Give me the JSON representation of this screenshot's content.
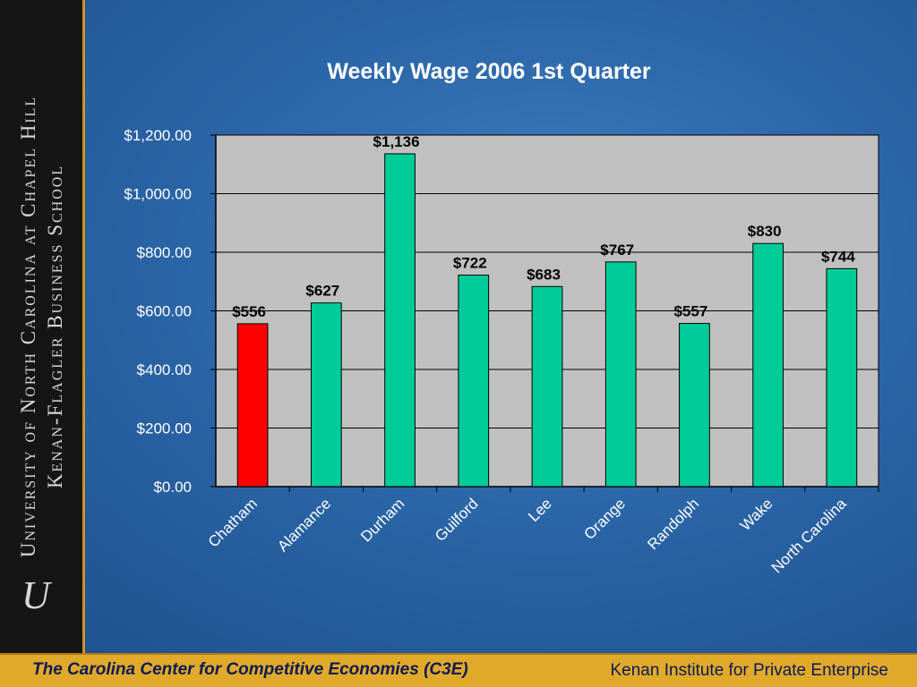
{
  "sidebar": {
    "line1": "University of North Carolina at Chapel Hill",
    "line2": "Kenan-Flagler Business School",
    "seal_letter": "U"
  },
  "footer": {
    "left": "The Carolina Center for Competitive Economies (C3E)",
    "right": "Kenan Institute for Private Enterprise",
    "background": "#e1a92a"
  },
  "chart_data": {
    "type": "bar",
    "title": "Weekly Wage 2006 1st Quarter",
    "xlabel": "",
    "ylabel": "",
    "categories": [
      "Chatham",
      "Alamance",
      "Durham",
      "Guilford",
      "Lee",
      "Orange",
      "Randolph",
      "Wake",
      "North Carolina"
    ],
    "values": [
      556,
      627,
      1136,
      722,
      683,
      767,
      557,
      830,
      744
    ],
    "data_labels": [
      "$556",
      "$627",
      "$1,136",
      "$722",
      "$683",
      "$767",
      "$557",
      "$830",
      "$744"
    ],
    "bar_colors": [
      "#ff0000",
      "#00cc99",
      "#00cc99",
      "#00cc99",
      "#00cc99",
      "#00cc99",
      "#00cc99",
      "#00cc99",
      "#00cc99"
    ],
    "ylim": [
      0,
      1200
    ],
    "yticks": [
      0,
      200,
      400,
      600,
      800,
      1000,
      1200
    ],
    "ytick_labels": [
      "$0.00",
      "$200.00",
      "$400.00",
      "$600.00",
      "$800.00",
      "$1,000.00",
      "$1,200.00"
    ],
    "grid": true,
    "plot_background": "#c0c0c0"
  }
}
